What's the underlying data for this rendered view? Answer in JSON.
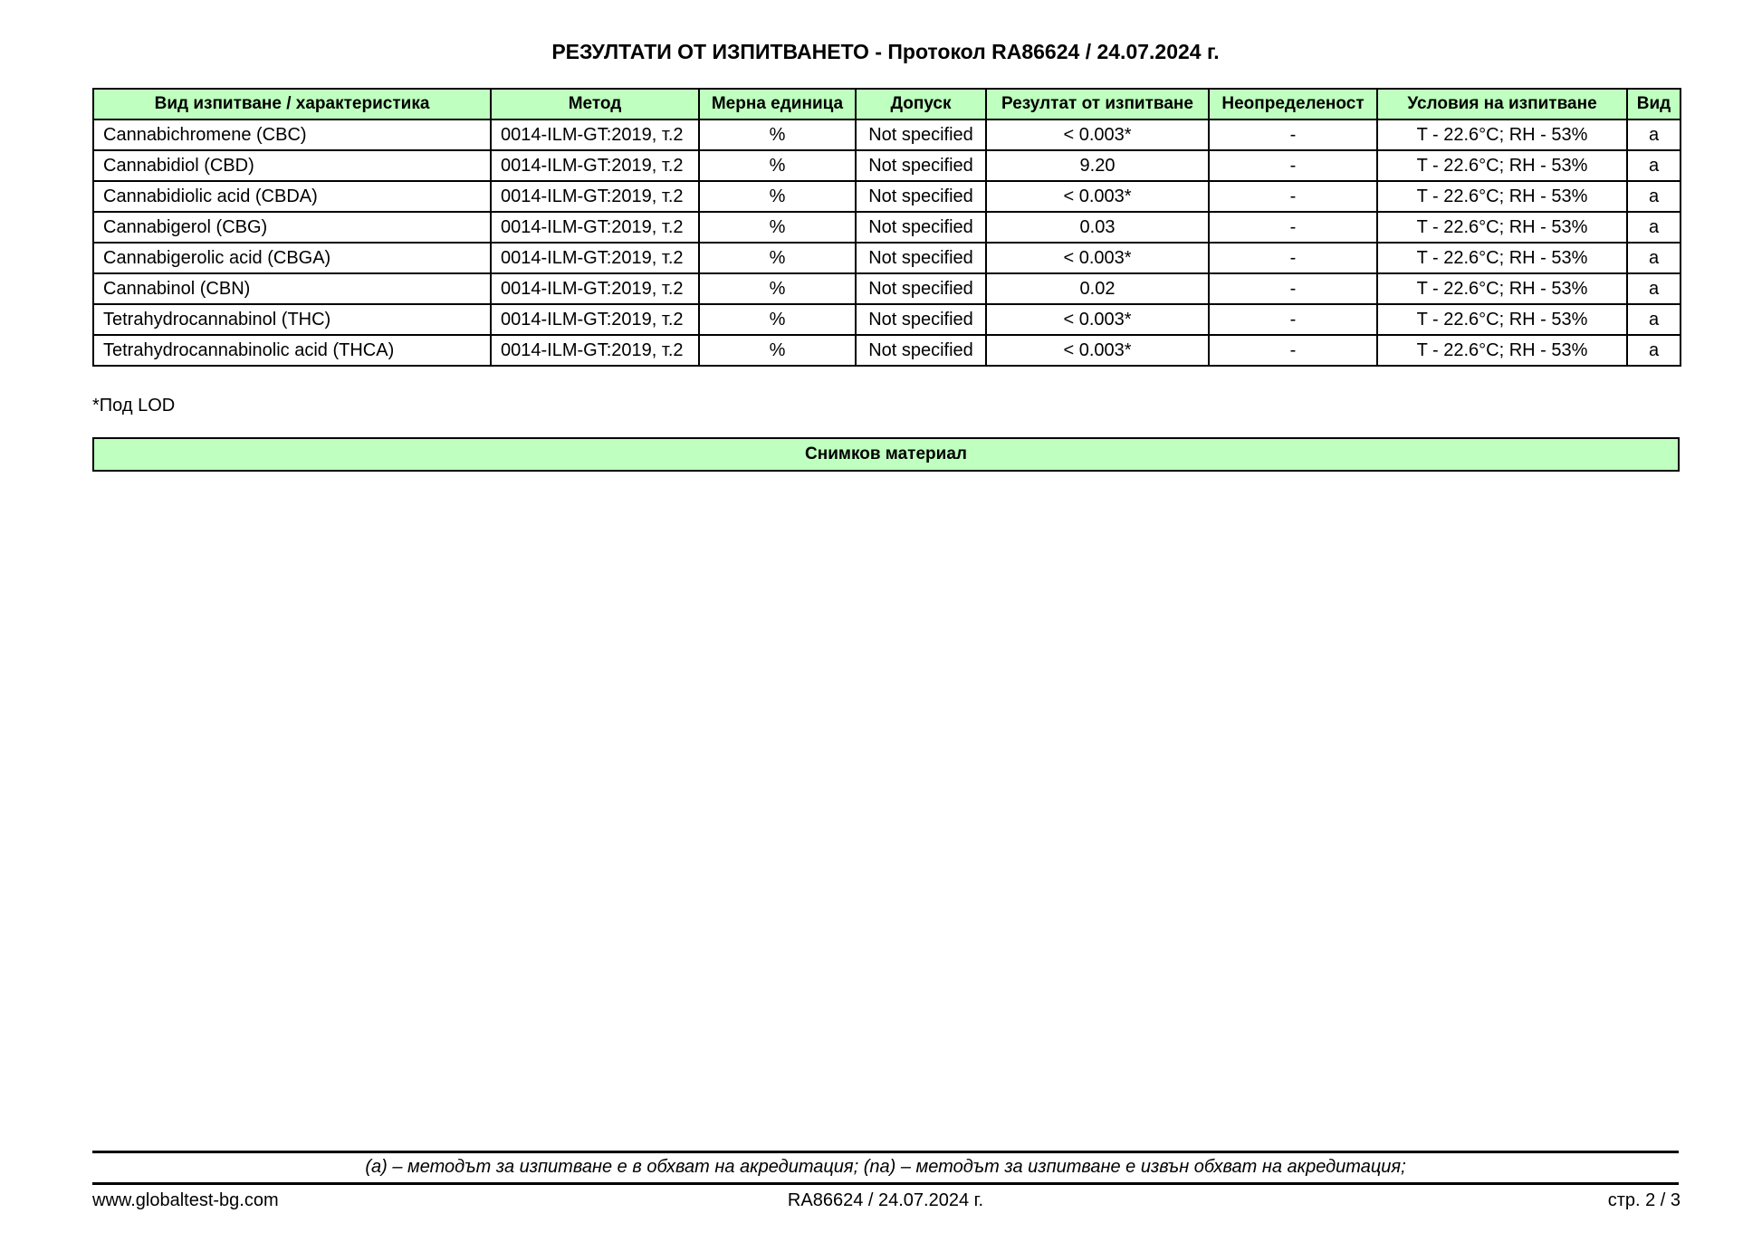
{
  "title": "РЕЗУЛТАТИ ОТ ИЗПИТВАНЕТО - Протокол  RA86624 / 24.07.2024 г.",
  "table": {
    "headers": [
      "Вид изпитване / характеристика",
      "Метод",
      "Мерна единица",
      "Допуск",
      "Резултат от изпитване",
      "Неопределеност",
      "Условия на изпитване",
      "Вид"
    ],
    "rows": [
      [
        "Cannabichromene (CBC)",
        "0014-ILM-GT:2019, т.2",
        "%",
        "Not specified",
        "< 0.003*",
        "-",
        "T - 22.6°C; RH - 53%",
        "a"
      ],
      [
        "Cannabidiol (CBD)",
        "0014-ILM-GT:2019, т.2",
        "%",
        "Not specified",
        "9.20",
        "-",
        "T - 22.6°C; RH - 53%",
        "a"
      ],
      [
        "Cannabidiolic acid (CBDA)",
        "0014-ILM-GT:2019, т.2",
        "%",
        "Not specified",
        "< 0.003*",
        "-",
        "T - 22.6°C; RH - 53%",
        "a"
      ],
      [
        "Cannabigerol (CBG)",
        "0014-ILM-GT:2019, т.2",
        "%",
        "Not specified",
        "0.03",
        "-",
        "T - 22.6°C; RH - 53%",
        "a"
      ],
      [
        "Cannabigerolic acid (CBGA)",
        "0014-ILM-GT:2019, т.2",
        "%",
        "Not specified",
        "< 0.003*",
        "-",
        "T - 22.6°C; RH - 53%",
        "a"
      ],
      [
        "Cannabinol (CBN)",
        "0014-ILM-GT:2019, т.2",
        "%",
        "Not specified",
        "0.02",
        "-",
        "T - 22.6°C; RH - 53%",
        "a"
      ],
      [
        "Tetrahydrocannabinol (THC)",
        "0014-ILM-GT:2019, т.2",
        "%",
        "Not specified",
        "< 0.003*",
        "-",
        "T - 22.6°C; RH - 53%",
        "a"
      ],
      [
        "Tetrahydrocannabinolic acid (THCA)",
        "0014-ILM-GT:2019, т.2",
        "%",
        "Not specified",
        "< 0.003*",
        "-",
        "T - 22.6°C; RH - 53%",
        "a"
      ]
    ]
  },
  "footnote": "*Под LOD",
  "photo_section": "Снимков материал",
  "accreditation_note": "(a) – методът за изпитване е в обхват на акредитация; (na) – методът за изпитване е извън обхват на акредитация;",
  "footer": {
    "website": "www.globaltest-bg.com",
    "protocol": "RA86624 / 24.07.2024 г.",
    "page": "стр. 2 / 3"
  },
  "colors": {
    "header_bg": "#bfffbf"
  }
}
